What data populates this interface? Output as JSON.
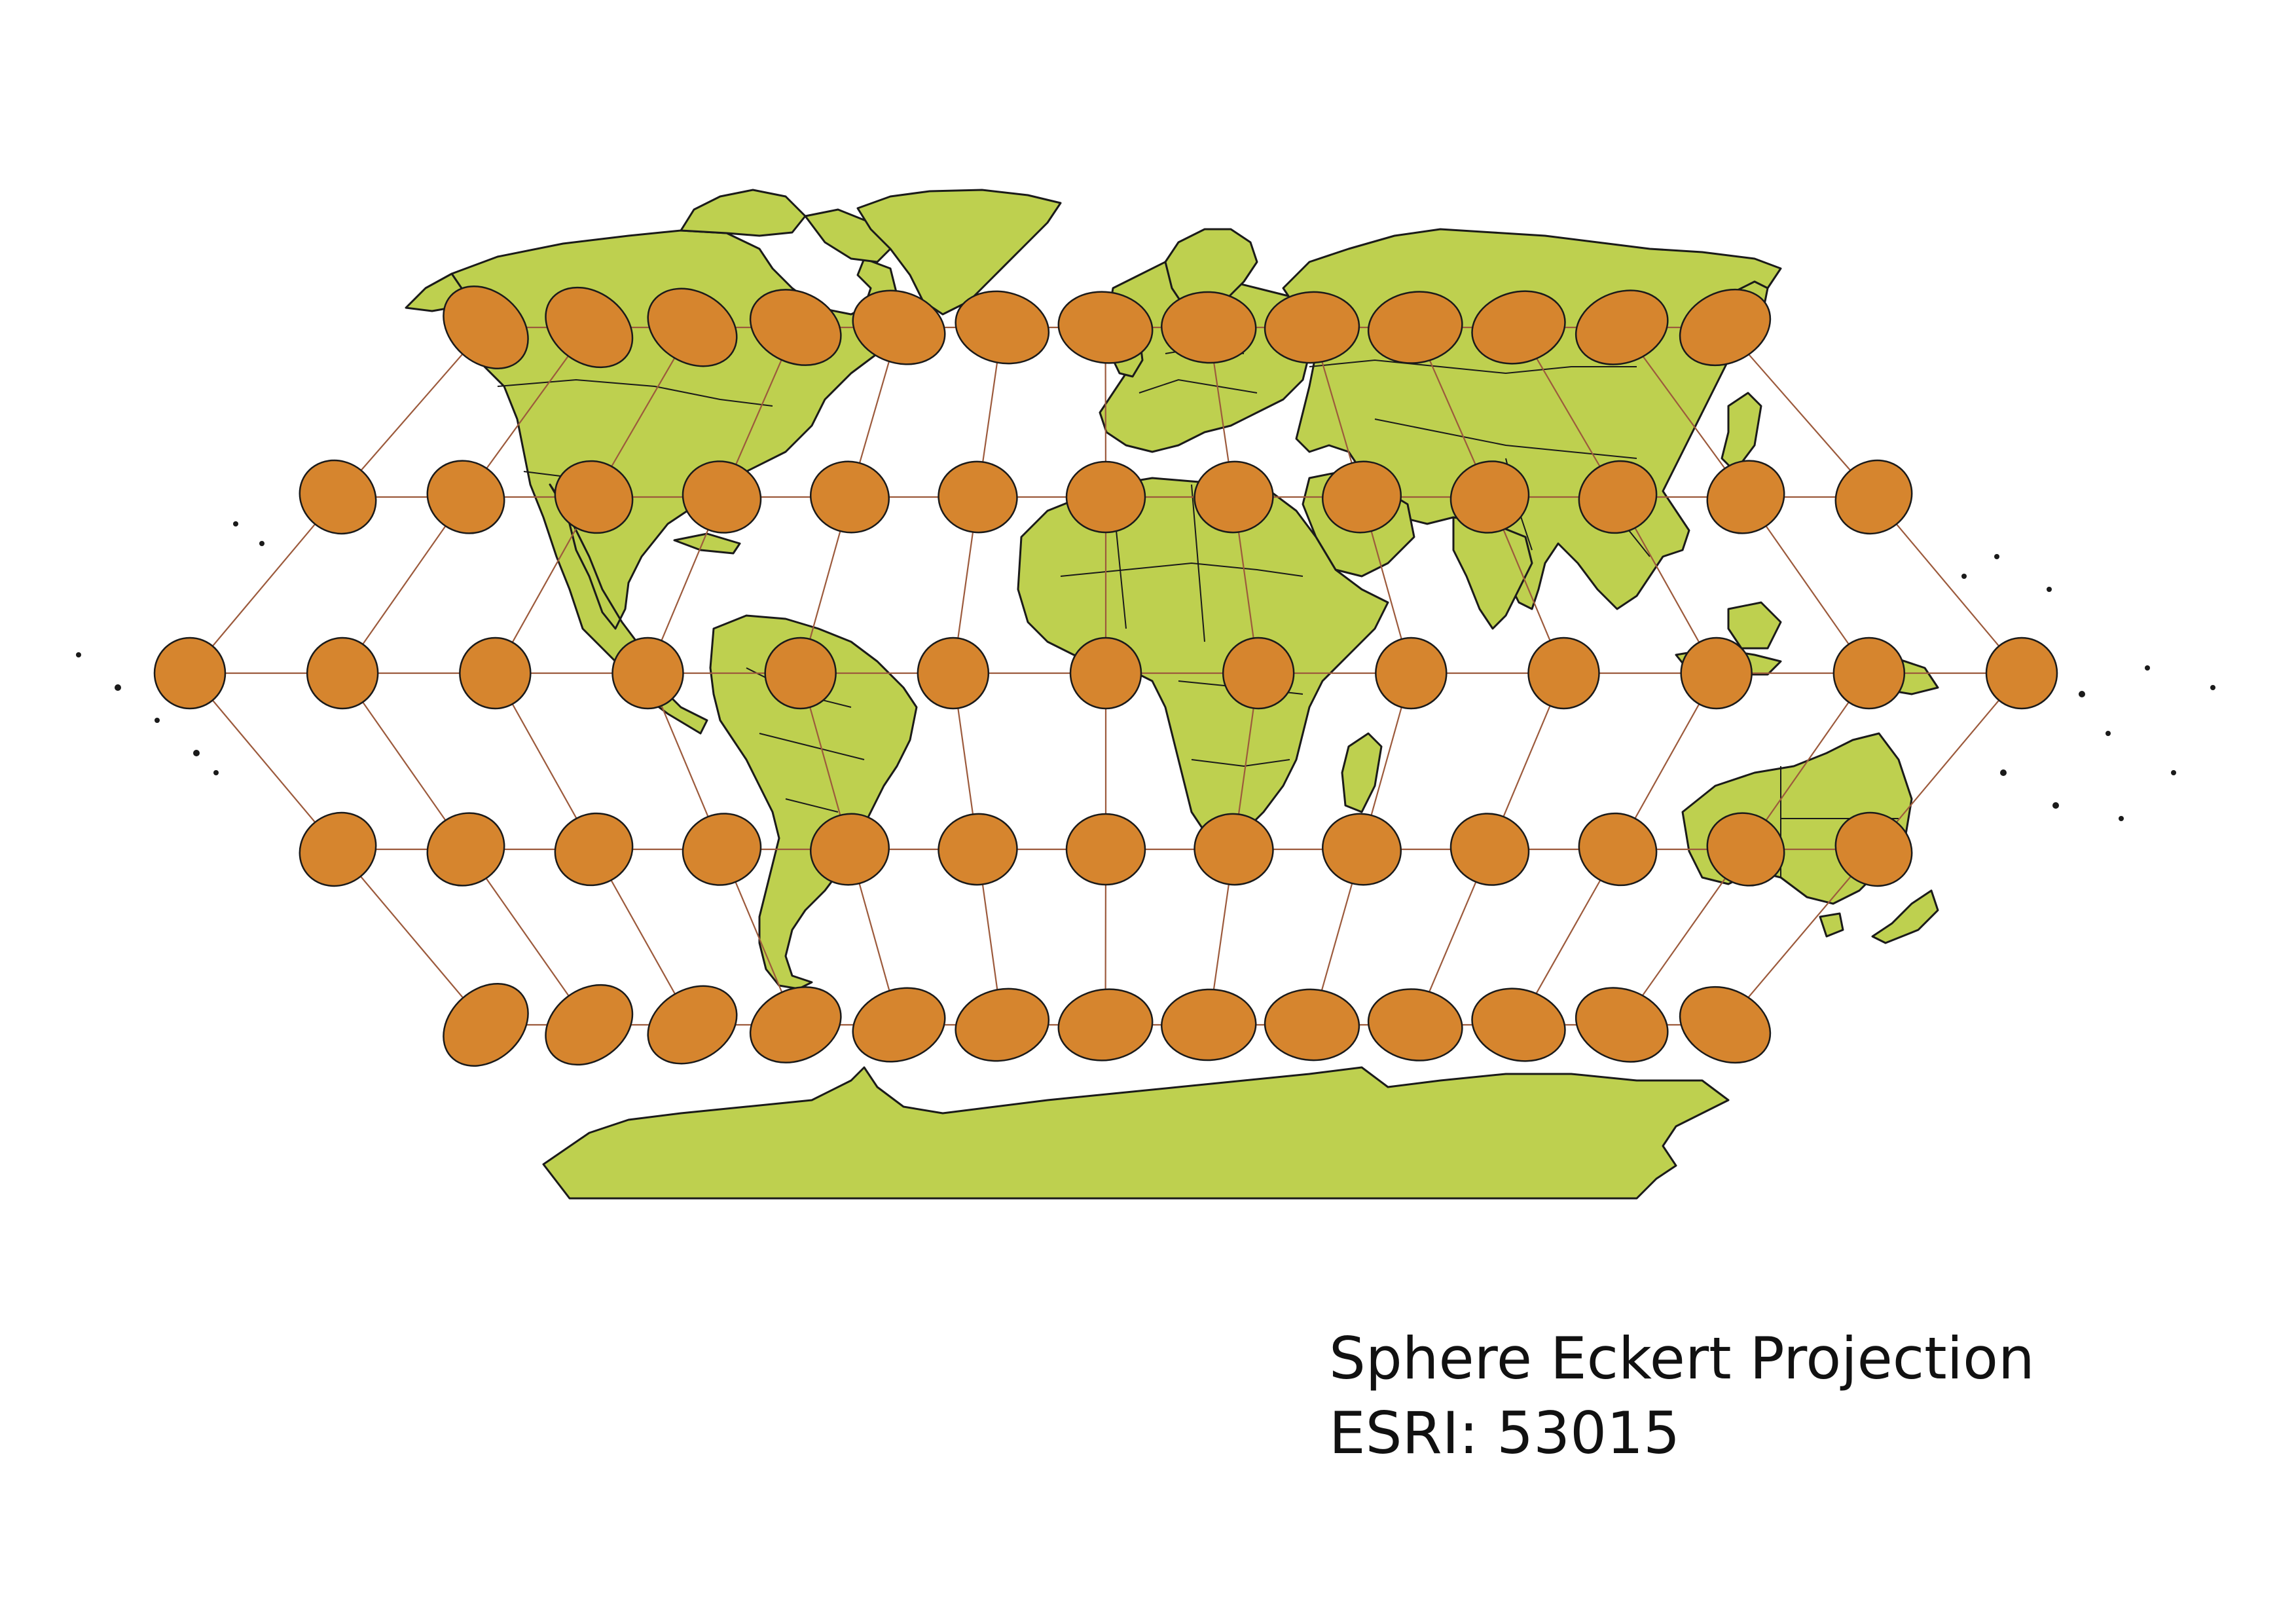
{
  "caption": {
    "title": "Sphere Eckert Projection",
    "code": "ESRI: 53015"
  },
  "map_data": {
    "projection": "Sphere Eckert",
    "layers": [
      "world land with country borders",
      "graticule",
      "Tissot indicatrices"
    ],
    "graticule_latitudes": [
      60,
      30,
      0,
      -30,
      -60
    ],
    "graticule_longitudes": [
      -180,
      -150,
      -120,
      -90,
      -60,
      -30,
      0,
      30,
      60,
      90,
      120,
      150,
      180
    ],
    "colors": {
      "land": "#bed04f",
      "coastline": "#1a1a1a",
      "graticule": "#9c5a3c",
      "tissot_ellipse": "#d6852e",
      "background": "#ffffff"
    }
  }
}
